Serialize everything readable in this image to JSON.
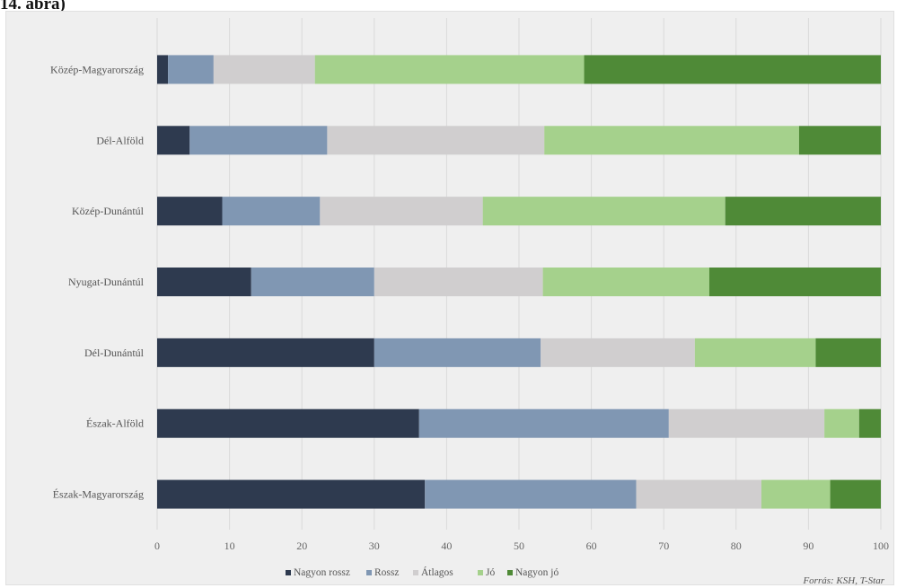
{
  "page": {
    "heading": "14. ábra)"
  },
  "chart_data": {
    "type": "bar",
    "orientation": "horizontal",
    "stacked": true,
    "categories": [
      "Közép-Magyarország",
      "Dél-Alföld",
      "Közép-Dunántúl",
      "Nyugat-Dunántúl",
      "Dél-Dunántúl",
      "Észak-Alföld",
      "Észak-Magyarország"
    ],
    "series": [
      {
        "name": "Nagyon rossz",
        "color": "#2e3a4f",
        "values": [
          1.5,
          4.5,
          9,
          13,
          30,
          36.2,
          37
        ]
      },
      {
        "name": "Rossz",
        "color": "#8097b3",
        "values": [
          6.3,
          19,
          13.5,
          17,
          23,
          34.5,
          29.2
        ]
      },
      {
        "name": "Átlagos",
        "color": "#d0cecf",
        "values": [
          14,
          30,
          22.5,
          23.3,
          21.3,
          21.5,
          17.3
        ]
      },
      {
        "name": "Jó",
        "color": "#a5d18c",
        "values": [
          37.2,
          35.2,
          33.5,
          23,
          16.7,
          4.8,
          9.5
        ]
      },
      {
        "name": "Nagyon jó",
        "color": "#4f8a37",
        "values": [
          41,
          11.3,
          21.5,
          23.7,
          9,
          3,
          7
        ]
      }
    ],
    "xlim": [
      0,
      100
    ],
    "xticks": [
      0,
      10,
      20,
      30,
      40,
      50,
      60,
      70,
      80,
      90,
      100
    ],
    "grid": true,
    "legend_position": "bottom",
    "source_note": "Forrás: KSH, T-Star"
  }
}
